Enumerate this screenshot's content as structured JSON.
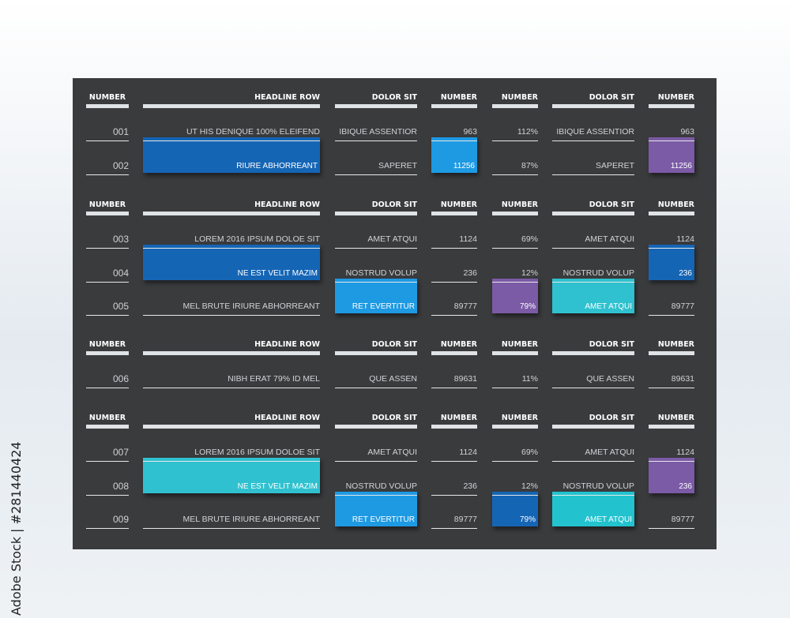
{
  "watermark_id": "Adobe Stock | #281440424",
  "colors": {
    "panel": "#3a3b3d",
    "blue_dark": "#1565b5",
    "blue_light": "#1e9ae3",
    "purple": "#7b5aa6",
    "teal": "#2fc1cf",
    "teal2": "#22c3cf"
  },
  "headers": [
    "NUMBER",
    "HEADLINE ROW",
    "DOLOR SIT",
    "NUMBER",
    "NUMBER",
    "DOLOR SIT",
    "NUMBER"
  ],
  "sections": [
    {
      "rows": [
        {
          "id": "001",
          "headline": "UT HIS DENIQUE 100% ELEIFEND",
          "dolor1": "IBIQUE ASSENTIOR",
          "num1": "963",
          "pct": "112%",
          "dolor2": "IBIQUE ASSENTIOR",
          "num2": "963"
        },
        {
          "id": "002",
          "headline": "RIURE ABHORREANT",
          "dolor1": "SAPERET",
          "num1": "11256",
          "pct": "87%",
          "dolor2": "SAPERET",
          "num2": "11256"
        }
      ]
    },
    {
      "rows": [
        {
          "id": "003",
          "headline": "LOREM 2016 IPSUM DOLOE SIT",
          "dolor1": "AMET ATQUI",
          "num1": "1124",
          "pct": "69%",
          "dolor2": "AMET ATQUI",
          "num2": "1124"
        },
        {
          "id": "004",
          "headline": "NE EST VELIT MAZIM",
          "dolor1": "NOSTRUD VOLUP",
          "num1": "236",
          "pct": "12%",
          "dolor2": "NOSTRUD VOLUP",
          "num2": "236"
        },
        {
          "id": "005",
          "headline": "MEL BRUTE IRIURE ABHORREANT",
          "dolor1": "RET EVERTITUR",
          "num1": "89777",
          "pct": "79%",
          "dolor2": "AMET ATQUI",
          "num2": "89777"
        }
      ]
    },
    {
      "rows": [
        {
          "id": "006",
          "headline": "NIBH ERAT 79% ID MEL",
          "dolor1": "QUE ASSEN",
          "num1": "89631",
          "pct": "11%",
          "dolor2": "QUE ASSEN",
          "num2": "89631"
        }
      ]
    },
    {
      "rows": [
        {
          "id": "007",
          "headline": "LOREM 2016 IPSUM DOLOE SIT",
          "dolor1": "AMET ATQUI",
          "num1": "1124",
          "pct": "69%",
          "dolor2": "AMET ATQUI",
          "num2": "1124"
        },
        {
          "id": "008",
          "headline": "NE EST VELIT MAZIM",
          "dolor1": "NOSTRUD VOLUP",
          "num1": "236",
          "pct": "12%",
          "dolor2": "NOSTRUD VOLUP",
          "num2": "236"
        },
        {
          "id": "009",
          "headline": "MEL BRUTE IRIURE ABHORREANT",
          "dolor1": "RET EVERTITUR",
          "num1": "89777",
          "pct": "79%",
          "dolor2": "AMET ATQUI",
          "num2": "89777"
        }
      ]
    }
  ]
}
